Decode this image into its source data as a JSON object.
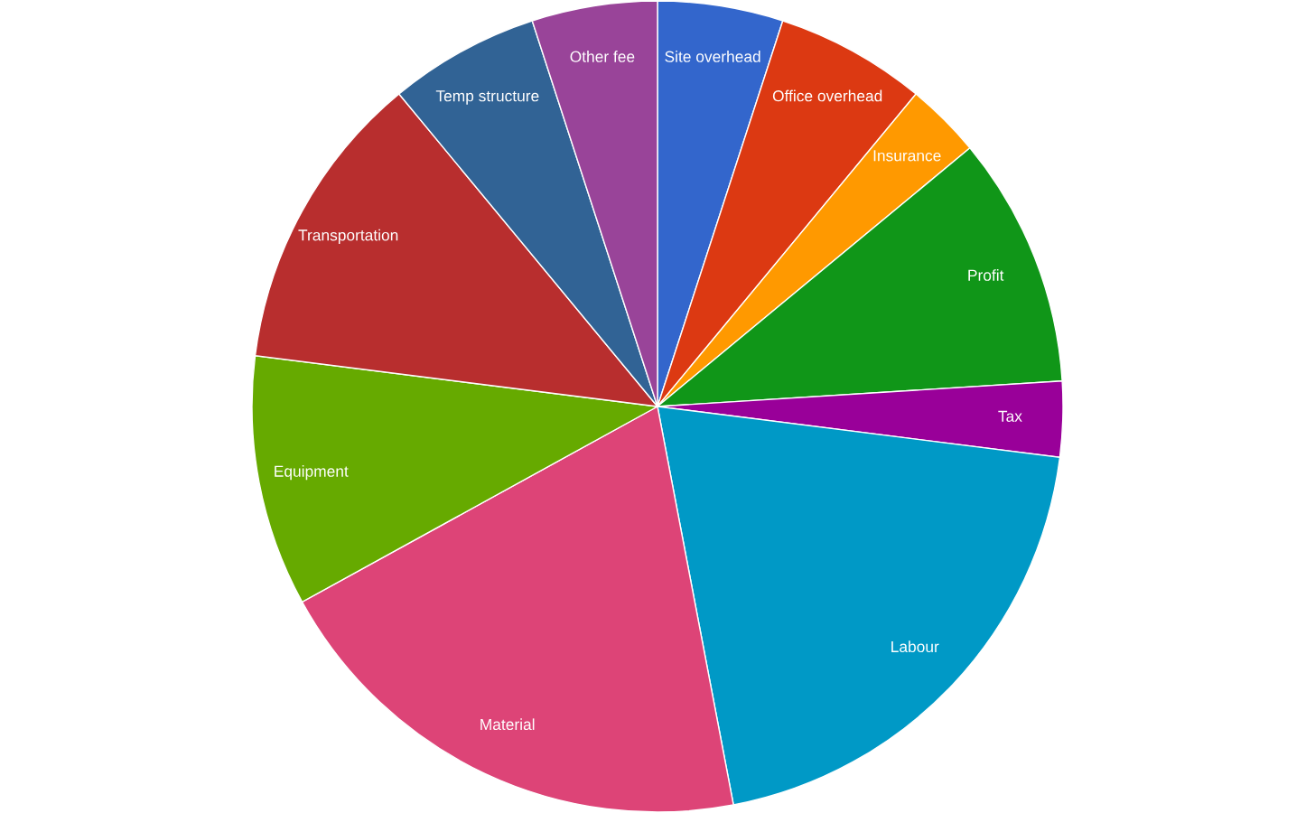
{
  "chart_data": {
    "type": "pie",
    "categories": [
      "Site overhead",
      "Office overhead",
      "Insurance",
      "Profit",
      "Tax",
      "Labour",
      "Material",
      "Equipment",
      "Transportation",
      "Temp structure",
      "Other fee"
    ],
    "values": [
      5,
      6,
      3,
      10,
      3,
      20,
      20,
      10,
      12,
      6,
      5
    ],
    "colors": [
      "#3366cc",
      "#dc3912",
      "#ff9900",
      "#109618",
      "#990099",
      "#0099c6",
      "#dd4477",
      "#66aa00",
      "#b82e2e",
      "#316395",
      "#994499"
    ],
    "legend": false
  }
}
